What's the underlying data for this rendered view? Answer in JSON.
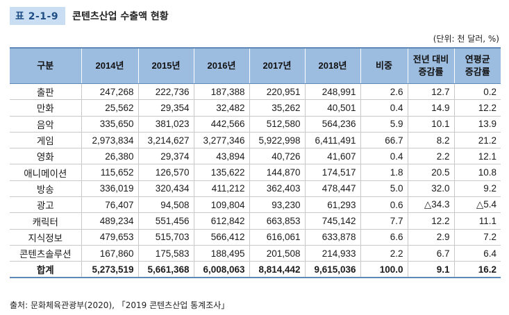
{
  "header": {
    "badge": "표 2-1-9",
    "title": "콘텐츠산업 수출액 현황",
    "unit": "(단위: 천 달러, %)"
  },
  "table": {
    "columns": [
      "구분",
      "2014년",
      "2015년",
      "2016년",
      "2017년",
      "2018년",
      "비중",
      [
        "전년 대비",
        "증감률"
      ],
      [
        "연평균",
        "증감률"
      ]
    ],
    "rows": [
      [
        "출판",
        "247,268",
        "222,736",
        "187,388",
        "220,951",
        "248,991",
        "2.6",
        "12.7",
        "0.2"
      ],
      [
        "만화",
        "25,562",
        "29,354",
        "32,482",
        "35,262",
        "40,501",
        "0.4",
        "14.9",
        "12.2"
      ],
      [
        "음악",
        "335,650",
        "381,023",
        "442,566",
        "512,580",
        "564,236",
        "5.9",
        "10.1",
        "13.9"
      ],
      [
        "게임",
        "2,973,834",
        "3,214,627",
        "3,277,346",
        "5,922,998",
        "6,411,491",
        "66.7",
        "8.2",
        "21.2"
      ],
      [
        "영화",
        "26,380",
        "29,374",
        "43,894",
        "40,726",
        "41,607",
        "0.4",
        "2.2",
        "12.1"
      ],
      [
        "애니메이션",
        "115,652",
        "126,570",
        "135,622",
        "144,870",
        "174,517",
        "1.8",
        "20.5",
        "10.8"
      ],
      [
        "방송",
        "336,019",
        "320,434",
        "411,212",
        "362,403",
        "478,447",
        "5.0",
        "32.0",
        "9.2"
      ],
      [
        "광고",
        "76,407",
        "94,508",
        "109,804",
        "93,230",
        "61,293",
        "0.6",
        "△34.3",
        "△5.4"
      ],
      [
        "캐릭터",
        "489,234",
        "551,456",
        "612,842",
        "663,853",
        "745,142",
        "7.7",
        "12.2",
        "11.1"
      ],
      [
        "지식정보",
        "479,653",
        "515,703",
        "566,412",
        "616,061",
        "633,878",
        "6.6",
        "2.9",
        "7.2"
      ],
      [
        "콘텐츠솔루션",
        "167,860",
        "175,583",
        "188,495",
        "201,508",
        "214,933",
        "2.2",
        "6.7",
        "6.4"
      ]
    ],
    "total": [
      "합계",
      "5,273,519",
      "5,661,368",
      "6,008,063",
      "8,814,442",
      "9,615,036",
      "100.0",
      "9.1",
      "16.2"
    ]
  },
  "footer": {
    "source": "출처: 문화체육관광부(2020), 「2019 콘텐츠산업 통계조사」"
  }
}
